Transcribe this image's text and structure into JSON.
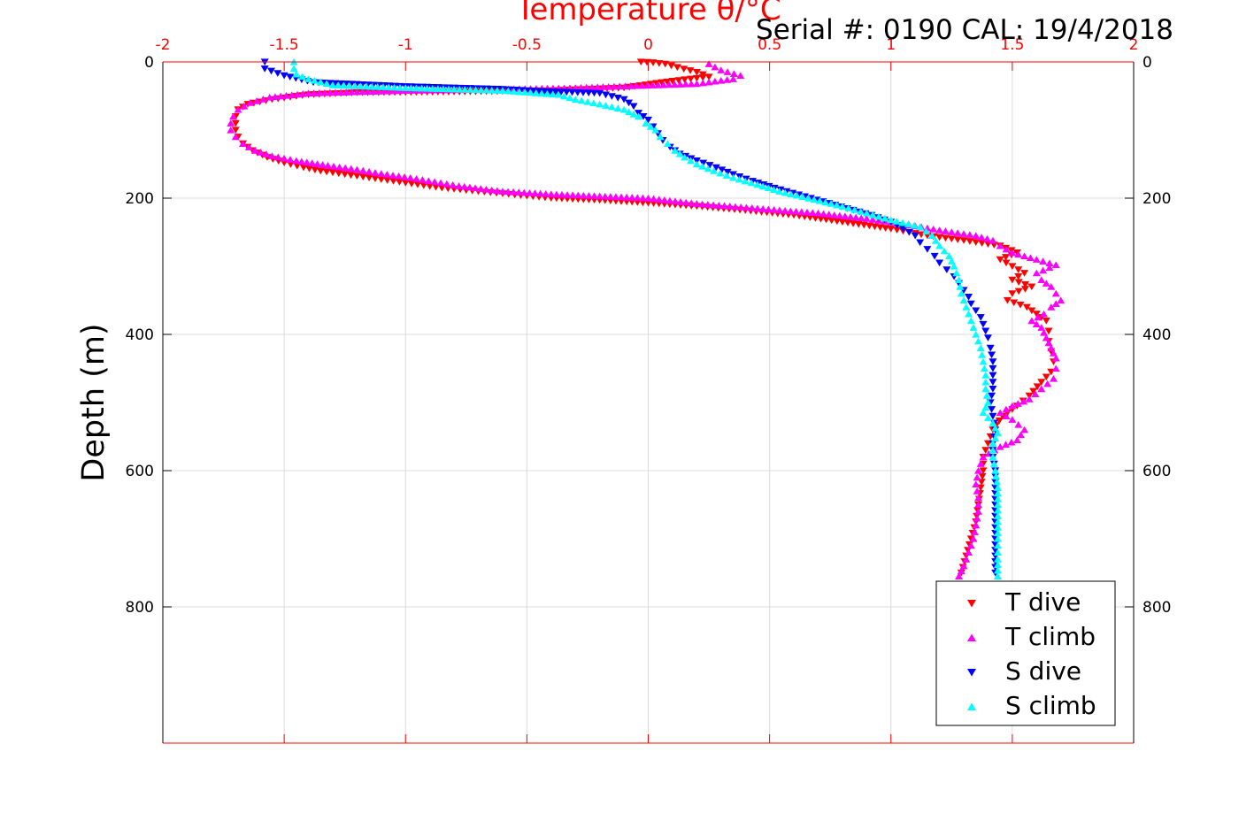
{
  "chart_data": {
    "type": "scatter",
    "title": "Temperature θ/°C",
    "annotation": "Serial #: 0190  CAL: 19/4/2018",
    "xlabel": "Temperature θ/°C",
    "ylabel": "Depth (m)",
    "xlim": [
      -2,
      2
    ],
    "ylim": [
      1000,
      0
    ],
    "x_ticks": [
      "-2",
      "-1.5",
      "-1",
      "-0.5",
      "0",
      "0.5",
      "1",
      "1.5",
      "2"
    ],
    "y_ticks": [
      "0",
      "200",
      "400",
      "600",
      "800"
    ],
    "y_reversed": true,
    "x_axis_position": "top",
    "grid": true,
    "legend_position": "bottom-right",
    "colors": {
      "axis_x": "#ff0000",
      "axis_y": "#000000",
      "grid": "#dcdcdc",
      "t_dive": "#ff0000",
      "t_climb": "#ff00ff",
      "s_dive": "#0000ff",
      "s_climb": "#00ffff"
    },
    "series": [
      {
        "name": "T dive",
        "marker": "triangle-down",
        "color": "#ff0000",
        "points": [
          [
            -0.03,
            0
          ],
          [
            0.02,
            1
          ],
          [
            0.07,
            3
          ],
          [
            0.12,
            8
          ],
          [
            0.2,
            15
          ],
          [
            0.25,
            22
          ],
          [
            0.1,
            28
          ],
          [
            -0.1,
            38
          ],
          [
            -0.4,
            42
          ],
          [
            -0.8,
            44
          ],
          [
            -1.2,
            45
          ],
          [
            -1.4,
            48
          ],
          [
            -1.55,
            55
          ],
          [
            -1.65,
            62
          ],
          [
            -1.69,
            70
          ],
          [
            -1.7,
            80
          ],
          [
            -1.7,
            90
          ],
          [
            -1.7,
            100
          ],
          [
            -1.69,
            110
          ],
          [
            -1.67,
            120
          ],
          [
            -1.63,
            130
          ],
          [
            -1.57,
            140
          ],
          [
            -1.5,
            148
          ],
          [
            -1.42,
            155
          ],
          [
            -1.35,
            160
          ],
          [
            -1.25,
            165
          ],
          [
            -1.15,
            170
          ],
          [
            -1.05,
            175
          ],
          [
            -0.95,
            180
          ],
          [
            -0.85,
            185
          ],
          [
            -0.7,
            190
          ],
          [
            -0.55,
            195
          ],
          [
            -0.4,
            200
          ],
          [
            -0.2,
            203
          ],
          [
            0.0,
            207
          ],
          [
            0.2,
            212
          ],
          [
            0.4,
            218
          ],
          [
            0.6,
            225
          ],
          [
            0.8,
            235
          ],
          [
            1.0,
            245
          ],
          [
            1.15,
            255
          ],
          [
            1.3,
            262
          ],
          [
            1.45,
            270
          ],
          [
            1.52,
            280
          ],
          [
            1.45,
            290
          ],
          [
            1.5,
            300
          ],
          [
            1.55,
            310
          ],
          [
            1.5,
            320
          ],
          [
            1.58,
            330
          ],
          [
            1.5,
            340
          ],
          [
            1.48,
            350
          ],
          [
            1.56,
            360
          ],
          [
            1.6,
            370
          ],
          [
            1.64,
            380
          ],
          [
            1.65,
            395
          ],
          [
            1.65,
            410
          ],
          [
            1.66,
            425
          ],
          [
            1.67,
            440
          ],
          [
            1.66,
            455
          ],
          [
            1.62,
            470
          ],
          [
            1.57,
            490
          ],
          [
            1.52,
            505
          ],
          [
            1.46,
            520
          ],
          [
            1.42,
            540
          ],
          [
            1.4,
            560
          ],
          [
            1.38,
            580
          ],
          [
            1.38,
            600
          ],
          [
            1.37,
            625
          ],
          [
            1.36,
            650
          ],
          [
            1.35,
            675
          ],
          [
            1.33,
            700
          ],
          [
            1.31,
            725
          ],
          [
            1.29,
            750
          ]
        ]
      },
      {
        "name": "T climb",
        "marker": "triangle-up",
        "color": "#ff00ff",
        "points": [
          [
            1.28,
            755
          ],
          [
            1.3,
            740
          ],
          [
            1.32,
            720
          ],
          [
            1.34,
            700
          ],
          [
            1.35,
            680
          ],
          [
            1.36,
            660
          ],
          [
            1.36,
            640
          ],
          [
            1.35,
            620
          ],
          [
            1.36,
            600
          ],
          [
            1.38,
            580
          ],
          [
            1.45,
            565
          ],
          [
            1.52,
            555
          ],
          [
            1.55,
            540
          ],
          [
            1.5,
            525
          ],
          [
            1.45,
            515
          ],
          [
            1.5,
            505
          ],
          [
            1.57,
            495
          ],
          [
            1.62,
            480
          ],
          [
            1.67,
            465
          ],
          [
            1.68,
            450
          ],
          [
            1.68,
            435
          ],
          [
            1.66,
            420
          ],
          [
            1.64,
            405
          ],
          [
            1.62,
            390
          ],
          [
            1.58,
            380
          ],
          [
            1.63,
            370
          ],
          [
            1.66,
            360
          ],
          [
            1.7,
            350
          ],
          [
            1.68,
            340
          ],
          [
            1.66,
            330
          ],
          [
            1.62,
            320
          ],
          [
            1.6,
            310
          ],
          [
            1.68,
            298
          ],
          [
            1.6,
            290
          ],
          [
            1.5,
            280
          ],
          [
            1.45,
            270
          ],
          [
            1.42,
            262
          ],
          [
            1.35,
            255
          ],
          [
            1.2,
            247
          ],
          [
            1.05,
            238
          ],
          [
            0.9,
            230
          ],
          [
            0.7,
            222
          ],
          [
            0.45,
            215
          ],
          [
            0.2,
            208
          ],
          [
            0.0,
            200
          ],
          [
            -0.2,
            197
          ],
          [
            -0.4,
            194
          ],
          [
            -0.6,
            190
          ],
          [
            -0.78,
            182
          ],
          [
            -0.88,
            176
          ],
          [
            -0.98,
            170
          ],
          [
            -1.1,
            164
          ],
          [
            -1.2,
            158
          ],
          [
            -1.32,
            152
          ],
          [
            -1.45,
            145
          ],
          [
            -1.55,
            138
          ],
          [
            -1.62,
            130
          ],
          [
            -1.67,
            120
          ],
          [
            -1.7,
            110
          ],
          [
            -1.72,
            100
          ],
          [
            -1.72,
            90
          ],
          [
            -1.71,
            80
          ],
          [
            -1.69,
            70
          ],
          [
            -1.64,
            60
          ],
          [
            -1.56,
            52
          ],
          [
            -1.4,
            46
          ],
          [
            -1.0,
            42
          ],
          [
            -0.6,
            40
          ],
          [
            -0.3,
            38
          ],
          [
            0.2,
            32
          ],
          [
            0.35,
            25
          ],
          [
            0.38,
            20
          ],
          [
            0.3,
            12
          ],
          [
            0.25,
            3
          ]
        ]
      },
      {
        "name": "S dive",
        "marker": "triangle-down",
        "color": "#0000ff",
        "points": [
          [
            -1.58,
            0
          ],
          [
            -1.58,
            10
          ],
          [
            -1.5,
            20
          ],
          [
            -1.38,
            30
          ],
          [
            -1.0,
            36
          ],
          [
            -0.6,
            40
          ],
          [
            -0.45,
            43
          ],
          [
            -0.2,
            46
          ],
          [
            -0.1,
            55
          ],
          [
            -0.06,
            65
          ],
          [
            -0.04,
            75
          ],
          [
            0.0,
            85
          ],
          [
            0.02,
            95
          ],
          [
            0.04,
            105
          ],
          [
            0.06,
            115
          ],
          [
            0.09,
            125
          ],
          [
            0.13,
            135
          ],
          [
            0.2,
            145
          ],
          [
            0.28,
            155
          ],
          [
            0.35,
            165
          ],
          [
            0.43,
            175
          ],
          [
            0.52,
            185
          ],
          [
            0.62,
            195
          ],
          [
            0.72,
            205
          ],
          [
            0.82,
            215
          ],
          [
            0.92,
            225
          ],
          [
            1.0,
            235
          ],
          [
            1.05,
            245
          ],
          [
            1.1,
            255
          ],
          [
            1.12,
            265
          ],
          [
            1.15,
            275
          ],
          [
            1.18,
            285
          ],
          [
            1.2,
            295
          ],
          [
            1.23,
            305
          ],
          [
            1.26,
            315
          ],
          [
            1.28,
            325
          ],
          [
            1.3,
            335
          ],
          [
            1.32,
            345
          ],
          [
            1.33,
            355
          ],
          [
            1.35,
            365
          ],
          [
            1.37,
            375
          ],
          [
            1.38,
            385
          ],
          [
            1.39,
            395
          ],
          [
            1.4,
            405
          ],
          [
            1.41,
            420
          ],
          [
            1.42,
            440
          ],
          [
            1.42,
            460
          ],
          [
            1.42,
            480
          ],
          [
            1.41,
            500
          ],
          [
            1.42,
            520
          ],
          [
            1.43,
            540
          ],
          [
            1.42,
            560
          ],
          [
            1.42,
            580
          ],
          [
            1.43,
            600
          ],
          [
            1.43,
            625
          ],
          [
            1.43,
            650
          ],
          [
            1.43,
            675
          ],
          [
            1.43,
            700
          ],
          [
            1.43,
            725
          ],
          [
            1.43,
            750
          ]
        ]
      },
      {
        "name": "S climb",
        "marker": "triangle-up",
        "color": "#00ffff",
        "points": [
          [
            1.44,
            755
          ],
          [
            1.44,
            730
          ],
          [
            1.44,
            700
          ],
          [
            1.44,
            675
          ],
          [
            1.44,
            650
          ],
          [
            1.44,
            625
          ],
          [
            1.43,
            600
          ],
          [
            1.42,
            580
          ],
          [
            1.42,
            560
          ],
          [
            1.44,
            545
          ],
          [
            1.42,
            530
          ],
          [
            1.38,
            515
          ],
          [
            1.4,
            500
          ],
          [
            1.39,
            480
          ],
          [
            1.39,
            460
          ],
          [
            1.38,
            440
          ],
          [
            1.37,
            420
          ],
          [
            1.35,
            400
          ],
          [
            1.33,
            380
          ],
          [
            1.31,
            360
          ],
          [
            1.29,
            340
          ],
          [
            1.28,
            320
          ],
          [
            1.26,
            300
          ],
          [
            1.24,
            285
          ],
          [
            1.2,
            270
          ],
          [
            1.17,
            255
          ],
          [
            1.12,
            242
          ],
          [
            1.0,
            232
          ],
          [
            0.9,
            222
          ],
          [
            0.8,
            212
          ],
          [
            0.66,
            200
          ],
          [
            0.54,
            190
          ],
          [
            0.45,
            180
          ],
          [
            0.35,
            170
          ],
          [
            0.27,
            160
          ],
          [
            0.2,
            150
          ],
          [
            0.15,
            140
          ],
          [
            0.11,
            130
          ],
          [
            0.08,
            120
          ],
          [
            0.05,
            110
          ],
          [
            0.03,
            100
          ],
          [
            -0.01,
            90
          ],
          [
            -0.04,
            80
          ],
          [
            -0.1,
            70
          ],
          [
            -0.2,
            62
          ],
          [
            -0.3,
            55
          ],
          [
            -0.37,
            48
          ],
          [
            -0.6,
            42
          ],
          [
            -1.0,
            38
          ],
          [
            -1.3,
            34
          ],
          [
            -1.4,
            25
          ],
          [
            -1.45,
            18
          ],
          [
            -1.46,
            10
          ],
          [
            -1.46,
            0
          ]
        ]
      }
    ]
  }
}
